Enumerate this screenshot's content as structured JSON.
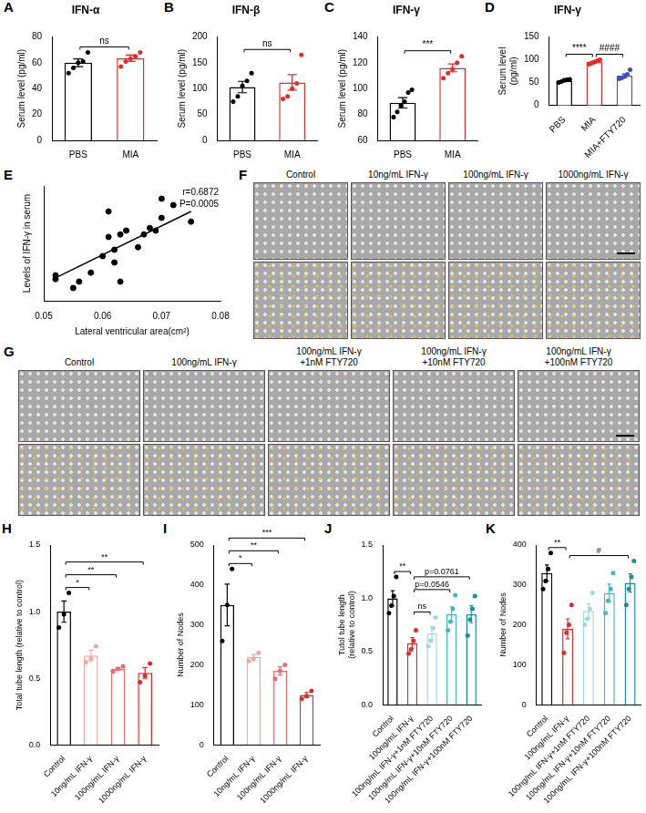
{
  "chart_data": [
    {
      "panel": "A",
      "type": "bar",
      "title": "IFN-α",
      "y_label": "Serum level (pg/ml)",
      "categories": [
        "PBS",
        "MIA"
      ],
      "values": [
        60,
        63.5
      ],
      "errors": [
        3,
        2.5
      ],
      "points": [
        [
          52,
          56,
          60,
          61,
          68
        ],
        [
          57,
          61,
          63,
          65,
          68
        ]
      ],
      "colors": [
        "#000000",
        "#e32b2b"
      ],
      "ylim": [
        0,
        80
      ],
      "yticks": [
        0,
        20,
        40,
        60,
        80
      ],
      "grid": false,
      "significance": [
        {
          "between": [
            0,
            1
          ],
          "label": "ns"
        }
      ]
    },
    {
      "panel": "B",
      "type": "bar",
      "title": "IFN-β",
      "y_label": "Serum level (pg/ml)",
      "categories": [
        "PBS",
        "MIA"
      ],
      "values": [
        103,
        112
      ],
      "errors": [
        11,
        15
      ],
      "points": [
        [
          75,
          85,
          105,
          115,
          130
        ],
        [
          80,
          85,
          100,
          110,
          165
        ]
      ],
      "colors": [
        "#000000",
        "#e32b2b"
      ],
      "ylim": [
        0,
        200
      ],
      "yticks": [
        0,
        50,
        100,
        150,
        200
      ],
      "grid": false,
      "significance": [
        {
          "between": [
            0,
            1
          ],
          "label": "ns"
        }
      ]
    },
    {
      "panel": "C",
      "type": "bar",
      "title": "IFN-γ",
      "y_label": "Serum level (pg/ml)",
      "categories": [
        "PBS",
        "MIA"
      ],
      "values": [
        89,
        116
      ],
      "errors": [
        4,
        3
      ],
      "points": [
        [
          78,
          82,
          87,
          90,
          97,
          99
        ],
        [
          108,
          112,
          115,
          120,
          125
        ]
      ],
      "colors": [
        "#000000",
        "#e32b2b"
      ],
      "ylim": [
        60,
        140
      ],
      "yticks": [
        60,
        80,
        100,
        120,
        140
      ],
      "grid": false,
      "significance": [
        {
          "between": [
            0,
            1
          ],
          "label": "***"
        }
      ]
    },
    {
      "panel": "D",
      "type": "bar",
      "title": "IFN-γ",
      "y_label": "Serum level (pg/ml)",
      "categories": [
        "PBS",
        "MIA",
        "MIA+FTY720"
      ],
      "values": [
        54,
        95,
        65
      ],
      "errors": [
        2,
        1.5,
        4
      ],
      "points": [
        [
          50,
          52,
          55,
          56,
          57
        ],
        [
          90,
          92,
          94,
          96,
          98,
          100
        ],
        [
          58,
          60,
          63,
          68,
          78
        ]
      ],
      "colors": [
        "#000000",
        "#e32b2b",
        "#3b4fc4"
      ],
      "ylim": [
        0,
        150
      ],
      "yticks": [
        0,
        50,
        100,
        150
      ],
      "grid": false,
      "significance": [
        {
          "between": [
            0,
            1
          ],
          "label": "****"
        },
        {
          "between": [
            1,
            2
          ],
          "label": "####"
        }
      ]
    },
    {
      "panel": "E",
      "type": "scatter",
      "x_label": "Lateral ventricular area(cm²)",
      "y_label": "Levels of IFN-γ in serum",
      "x": [
        0.052,
        0.052,
        0.055,
        0.056,
        0.058,
        0.06,
        0.061,
        0.061,
        0.062,
        0.062,
        0.063,
        0.063,
        0.064,
        0.066,
        0.067,
        0.068,
        0.069,
        0.07,
        0.07,
        0.072,
        0.075
      ],
      "values": [
        60,
        57,
        50,
        55,
        62,
        75,
        110,
        90,
        80,
        70,
        55,
        92,
        95,
        82,
        92,
        97,
        95,
        105,
        120,
        115,
        102
      ],
      "color": "#000000",
      "fit_line": {
        "x": [
          0.052,
          0.075
        ],
        "values": [
          58,
          110
        ]
      },
      "annotations": [
        "r=0.6872",
        "P=0.0005"
      ],
      "xlim": [
        0.05,
        0.08
      ],
      "xticks": [
        0.05,
        0.06,
        0.07,
        0.08
      ],
      "ylim": [
        40,
        130
      ],
      "tick_labels": "x",
      "grid": false
    },
    {
      "panel": "H",
      "type": "bar",
      "y_label": "Total tube length (relative to control)",
      "categories": [
        "Control",
        "10ng/mL IFN-γ",
        "100ng/mL IFN-γ",
        "1000ng/mL IFN-γ"
      ],
      "values": [
        1.0,
        0.67,
        0.57,
        0.54
      ],
      "errors": [
        0.08,
        0.04,
        0.01,
        0.04
      ],
      "points": [
        [
          0.88,
          0.98,
          1.14
        ],
        [
          0.62,
          0.65,
          0.74
        ],
        [
          0.55,
          0.57,
          0.59
        ],
        [
          0.47,
          0.52,
          0.61
        ]
      ],
      "colors": [
        "#000000",
        "#f4a6a6",
        "#ee6b6b",
        "#e02b2b"
      ],
      "ylim": [
        0,
        1.5
      ],
      "yticks": [
        {
          "value": 0,
          "label": "0.0"
        },
        0.5,
        {
          "value": 1,
          "label": "1.0"
        },
        1.5
      ],
      "grid": false,
      "significance": [
        {
          "between": [
            0,
            1
          ],
          "label": "*"
        },
        {
          "between": [
            0,
            2
          ],
          "label": "**"
        },
        {
          "between": [
            0,
            3
          ],
          "label": "**"
        }
      ]
    },
    {
      "panel": "I",
      "type": "bar",
      "y_label": "Number of Nodes",
      "categories": [
        "Control",
        "10ng/mL IFN-γ",
        "100ng/mL IFN-γ",
        "1000ng/mL IFN-γ"
      ],
      "values": [
        350,
        220,
        185,
        125
      ],
      "errors": [
        52,
        6,
        10,
        6
      ],
      "points": [
        [
          260,
          350,
          440
        ],
        [
          210,
          215,
          230
        ],
        [
          165,
          185,
          200
        ],
        [
          115,
          122,
          135
        ]
      ],
      "colors": [
        "#000000",
        "#f4a6a6",
        "#ee6b6b",
        "#e02b2b"
      ],
      "ylim": [
        0,
        500
      ],
      "yticks": [
        0,
        100,
        200,
        300,
        400,
        500
      ],
      "grid": false,
      "significance": [
        {
          "between": [
            0,
            1
          ],
          "label": "*"
        },
        {
          "between": [
            0,
            2
          ],
          "label": "**"
        },
        {
          "between": [
            0,
            3
          ],
          "label": "***"
        }
      ]
    },
    {
      "panel": "J",
      "type": "bar",
      "y_label": "Tutol tube length (relative to control)",
      "categories": [
        "Control",
        "100ng/mL IFN-γ",
        "100ng/mL IFN-γ+1nM FTY720",
        "100ng/mL IFN-γ+10nM FTY720",
        "100ng/mL IFN-γ+100nM FTY720"
      ],
      "values": [
        1.0,
        0.58,
        0.67,
        0.85,
        0.85
      ],
      "errors": [
        0.07,
        0.05,
        0.06,
        0.07,
        0.08
      ],
      "points": [
        [
          0.86,
          0.93,
          1.02,
          1.2
        ],
        [
          0.48,
          0.52,
          0.6,
          0.7
        ],
        [
          0.55,
          0.6,
          0.72,
          0.82
        ],
        [
          0.7,
          0.78,
          0.9,
          1.03
        ],
        [
          0.65,
          0.8,
          0.9,
          1.02
        ]
      ],
      "colors": [
        "#000000",
        "#e02b2b",
        "#9fd9e0",
        "#3fb8c6",
        "#1a8f9c"
      ],
      "ylim": [
        0,
        1.5
      ],
      "yticks": [
        {
          "value": 0,
          "label": "0.0"
        },
        0.5,
        {
          "value": 1,
          "label": "1.0"
        },
        1.5
      ],
      "grid": false,
      "significance": [
        {
          "between": [
            0,
            1
          ],
          "label": "**"
        },
        {
          "between": [
            1,
            2
          ],
          "label": "ns"
        },
        {
          "between": [
            1,
            3
          ],
          "label": "p=0.0546"
        },
        {
          "between": [
            1,
            4
          ],
          "label": "p=0.0761"
        }
      ]
    },
    {
      "panel": "K",
      "type": "bar",
      "y_label": "Number of Nodes",
      "categories": [
        "Control",
        "100ng/mL IFN-γ",
        "100ng/mL IFN-γ+1nM FTY720",
        "100ng/mL IFN-γ+10nM FTY720",
        "100ng/mL IFN-γ+100nM FTY720"
      ],
      "values": [
        330,
        190,
        235,
        280,
        305
      ],
      "errors": [
        20,
        25,
        18,
        22,
        23
      ],
      "points": [
        [
          290,
          310,
          340,
          380
        ],
        [
          130,
          180,
          200,
          250
        ],
        [
          200,
          215,
          240,
          280
        ],
        [
          230,
          260,
          290,
          330
        ],
        [
          250,
          290,
          320,
          360
        ]
      ],
      "colors": [
        "#000000",
        "#e02b2b",
        "#9fd9e0",
        "#3fb8c6",
        "#1a8f9c"
      ],
      "ylim": [
        0,
        400
      ],
      "yticks": [
        0,
        100,
        200,
        300,
        400
      ],
      "grid": false,
      "significance": [
        {
          "between": [
            0,
            1
          ],
          "label": "**"
        },
        {
          "between": [
            1,
            4
          ],
          "label": "#"
        }
      ]
    }
  ],
  "image_panels": [
    {
      "panel": "F",
      "labels": [
        "Control",
        "10ng/mL IFN-γ",
        "100ng/mL IFN-γ",
        "1000ng/mL IFN-γ"
      ]
    },
    {
      "panel": "G",
      "labels": [
        "Control",
        "100ng/mL IFN-γ",
        "100ng/mL IFN-γ +1nM FTY720",
        "100ng/mL IFN-γ +10nM FTY720",
        "100ng/mL IFN-γ +100nM FTY720"
      ]
    }
  ]
}
